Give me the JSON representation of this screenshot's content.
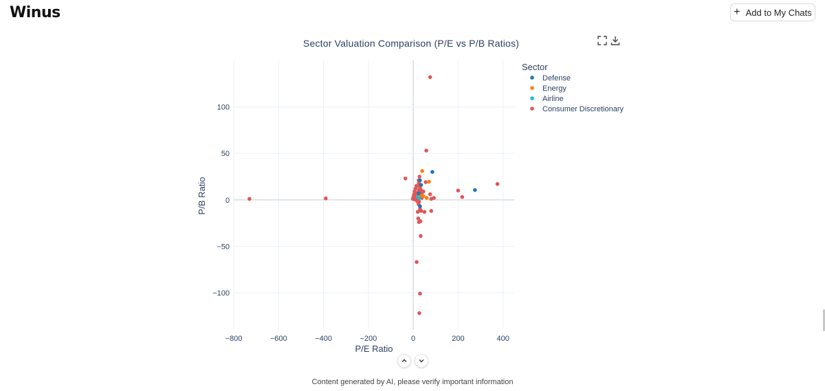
{
  "app": {
    "logo_text": "Winus",
    "add_button_label": "Add to My Chats",
    "footer_text": "Content generated by AI, please verify important information"
  },
  "toolbar": {
    "fullscreen_icon": "expand-icon",
    "download_icon": "download-icon"
  },
  "chart_data": {
    "type": "scatter",
    "title": "Sector Valuation Comparison (P/E vs P/B Ratios)",
    "xlabel": "P/E Ratio",
    "ylabel": "P/B Ratio",
    "xlim": [
      -800,
      450
    ],
    "ylim": [
      -140,
      150
    ],
    "xticks": [
      -800,
      -600,
      -400,
      -200,
      0,
      200,
      400
    ],
    "yticks": [
      -100,
      -50,
      0,
      50,
      100
    ],
    "legend_title": "Sector",
    "grid": true,
    "legend_position": "top-right",
    "series": [
      {
        "name": "Defense",
        "color": "#1f77b4",
        "points": [
          [
            85,
            30
          ],
          [
            275,
            10.5
          ],
          [
            30,
            21
          ],
          [
            35,
            16
          ],
          [
            25,
            7
          ],
          [
            30,
            -7
          ]
        ]
      },
      {
        "name": "Energy",
        "color": "#ff7f0e",
        "points": [
          [
            40,
            31
          ],
          [
            70,
            19.5
          ],
          [
            45,
            4
          ],
          [
            60,
            2
          ],
          [
            30,
            5
          ]
        ]
      },
      {
        "name": "Airline",
        "color": "#17becf",
        "points": [
          [
            20,
            3
          ],
          [
            28,
            2
          ]
        ]
      },
      {
        "name": "Consumer Discretionary",
        "color": "#e15759",
        "points": [
          [
            -730,
            1
          ],
          [
            -390,
            1.5
          ],
          [
            -35,
            23
          ],
          [
            75,
            132
          ],
          [
            58,
            53
          ],
          [
            375,
            17
          ],
          [
            200,
            10
          ],
          [
            218,
            3
          ],
          [
            92,
            2
          ],
          [
            80,
            1
          ],
          [
            75,
            6
          ],
          [
            55,
            19
          ],
          [
            5,
            1
          ],
          [
            8,
            3
          ],
          [
            10,
            0
          ],
          [
            12,
            2
          ],
          [
            15,
            4
          ],
          [
            18,
            1
          ],
          [
            20,
            6
          ],
          [
            22,
            8
          ],
          [
            25,
            10
          ],
          [
            28,
            12
          ],
          [
            30,
            14
          ],
          [
            32,
            3
          ],
          [
            35,
            5
          ],
          [
            38,
            2
          ],
          [
            18,
            -1
          ],
          [
            22,
            -3
          ],
          [
            24,
            -5
          ],
          [
            26,
            -2
          ],
          [
            30,
            -10
          ],
          [
            35,
            -12
          ],
          [
            50,
            -13
          ],
          [
            80,
            -12
          ],
          [
            20,
            -13
          ],
          [
            22,
            -20
          ],
          [
            25,
            -24
          ],
          [
            32,
            -23
          ],
          [
            33,
            -39
          ],
          [
            15,
            -67
          ],
          [
            30,
            -101
          ],
          [
            27,
            -122
          ],
          [
            25,
            18
          ],
          [
            28,
            25
          ],
          [
            24,
            21
          ],
          [
            26,
            15
          ],
          [
            33,
            11
          ],
          [
            40,
            8
          ],
          [
            45,
            9
          ],
          [
            15,
            7
          ],
          [
            12,
            5
          ],
          [
            -2,
            1
          ],
          [
            0,
            2
          ],
          [
            2,
            4
          ],
          [
            4,
            6
          ],
          [
            6,
            9
          ],
          [
            10,
            12
          ],
          [
            14,
            15
          ],
          [
            16,
            1
          ],
          [
            19,
            2
          ]
        ]
      }
    ]
  }
}
